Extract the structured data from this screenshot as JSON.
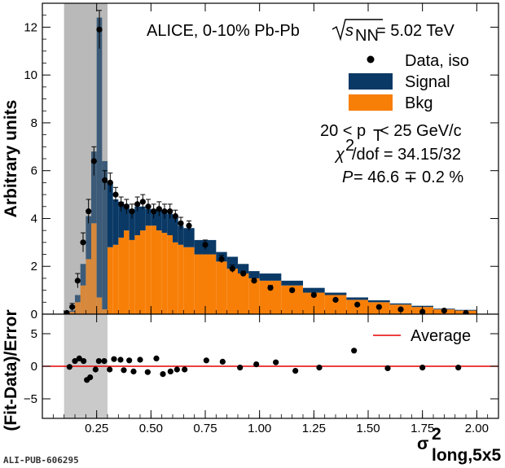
{
  "chart_data": [
    {
      "type": "bar",
      "panel": "top",
      "ylabel": "Arbitrary units",
      "xlim": [
        0.0,
        2.1
      ],
      "ylim": [
        0,
        13
      ],
      "xticks": [
        0.25,
        0.5,
        0.75,
        1.0,
        1.25,
        1.5,
        1.75,
        2.0
      ],
      "yticks": [
        0,
        2,
        4,
        6,
        8,
        10,
        12
      ],
      "ytick_labels": [
        "0",
        "2",
        "4",
        "6",
        "8",
        "10",
        "12"
      ],
      "shaded_x_range": [
        0.1,
        0.3
      ],
      "annotations": {
        "collision": "ALICE, 0-10% Pb-Pb",
        "energy": "= 5.02 TeV",
        "pt_range": "20 < p",
        "pt_unit": " < 25 GeV/c",
        "chi2_value": "/dof = 34.15/32",
        "purity_value": " = 46.6 ∓ 0.2 %",
        "purity_symbol": "P"
      },
      "legend": {
        "position": "top-right",
        "entries": [
          {
            "label": "Data, iso",
            "marker": "circle",
            "color": "#000000"
          },
          {
            "label": "Signal",
            "marker": "box",
            "color": "#0a3966"
          },
          {
            "label": "Bkg",
            "marker": "box",
            "color": "#f77f08"
          }
        ]
      },
      "bin_edges": [
        0.1,
        0.125,
        0.15,
        0.175,
        0.2,
        0.225,
        0.25,
        0.275,
        0.3,
        0.325,
        0.35,
        0.375,
        0.4,
        0.425,
        0.45,
        0.475,
        0.5,
        0.525,
        0.55,
        0.575,
        0.6,
        0.625,
        0.65,
        0.7,
        0.8,
        0.85,
        0.9,
        0.95,
        1.0,
        1.1,
        1.2,
        1.3,
        1.4,
        1.5,
        1.6,
        1.7,
        1.8,
        1.9,
        2.0
      ],
      "series": [
        {
          "name": "Bkg",
          "color": "#f77f08",
          "values": [
            0.02,
            0.1,
            0.5,
            1.2,
            2.3,
            3.8,
            0.7,
            0.2,
            2.8,
            2.9,
            3.2,
            3.5,
            3.1,
            3.3,
            3.5,
            3.7,
            3.7,
            3.5,
            3.4,
            3.3,
            3.0,
            2.9,
            2.8,
            2.5,
            2.2,
            1.9,
            1.7,
            1.5,
            1.4,
            1.2,
            0.9,
            0.8,
            0.6,
            0.5,
            0.4,
            0.3,
            0.2,
            0.15
          ]
        },
        {
          "name": "Signal",
          "color": "#0a3966",
          "values": [
            0.0,
            0.05,
            0.3,
            0.9,
            1.8,
            3.0,
            11.7,
            6.2,
            2.7,
            1.9,
            1.5,
            1.1,
            1.3,
            1.2,
            1.0,
            0.7,
            0.7,
            0.9,
            0.9,
            0.9,
            1.1,
            0.8,
            0.8,
            0.6,
            0.4,
            0.5,
            0.4,
            0.3,
            0.3,
            0.2,
            0.2,
            0.1,
            0.1,
            0.08,
            0.05,
            0.05,
            0.03,
            0.03
          ]
        }
      ],
      "data_points": {
        "name": "Data, iso",
        "x": [
          0.1125,
          0.1375,
          0.1625,
          0.1875,
          0.2125,
          0.2375,
          0.2625,
          0.2875,
          0.3125,
          0.3375,
          0.3625,
          0.3875,
          0.4125,
          0.4375,
          0.4625,
          0.4875,
          0.5125,
          0.5375,
          0.5625,
          0.5875,
          0.6125,
          0.6375,
          0.675,
          0.75,
          0.825,
          0.875,
          0.925,
          0.975,
          1.05,
          1.15,
          1.25,
          1.35,
          1.45,
          1.55,
          1.65,
          1.75,
          1.85,
          1.95
        ],
        "y": [
          0.05,
          0.3,
          1.4,
          3.0,
          4.3,
          6.4,
          11.9,
          5.6,
          5.5,
          5.0,
          4.6,
          4.5,
          4.3,
          4.6,
          4.7,
          4.5,
          4.3,
          4.4,
          4.3,
          4.3,
          4.1,
          3.8,
          3.7,
          2.9,
          2.3,
          1.9,
          1.7,
          1.4,
          1.1,
          1.0,
          0.8,
          0.6,
          0.4,
          0.3,
          0.2,
          0.1,
          0.15,
          0.05
        ],
        "err": [
          0.05,
          0.15,
          0.3,
          0.4,
          0.5,
          0.6,
          0.8,
          0.4,
          0.4,
          0.3,
          0.3,
          0.3,
          0.3,
          0.3,
          0.3,
          0.3,
          0.3,
          0.3,
          0.3,
          0.3,
          0.25,
          0.25,
          0.2,
          0.2,
          0.15,
          0.15,
          0.1,
          0.1,
          0.1,
          0.08,
          0.08,
          0.06,
          0.05,
          0.04,
          0.04,
          0.03,
          0.03,
          0.02
        ]
      }
    },
    {
      "type": "scatter",
      "panel": "bottom",
      "ylabel": "(Fit-Data)/Error",
      "xlabel": "σ",
      "xlabel_sup": "2",
      "xlabel_sub": "long,5x5",
      "xlim": [
        0.0,
        2.1
      ],
      "ylim": [
        -8,
        8
      ],
      "xticks": [
        0.25,
        0.5,
        0.75,
        1.0,
        1.25,
        1.5,
        1.75,
        2.0
      ],
      "xtick_labels": [
        "0.25",
        "0.50",
        "0.75",
        "1.00",
        "1.25",
        "1.50",
        "1.75",
        "2.00"
      ],
      "yticks": [
        -5,
        0,
        5
      ],
      "ytick_labels": [
        "−5",
        "0",
        "5"
      ],
      "shaded_x_range": [
        0.1,
        0.3
      ],
      "average": {
        "label": "Average",
        "value": 0.0,
        "color": "#e60000"
      },
      "x": [
        0.125,
        0.15,
        0.175,
        0.2,
        0.225,
        0.25,
        0.275,
        0.3,
        0.35,
        0.375,
        0.4,
        0.425,
        0.45,
        0.475,
        0.525,
        0.575,
        0.625,
        0.675,
        0.725,
        0.75,
        0.8,
        0.9,
        0.95,
        1.075,
        1.15,
        1.25,
        1.375,
        1.425,
        1.55,
        1.675,
        1.85
      ],
      "y": [
        -0.1,
        0.6,
        1.2,
        0.7,
        -2.0,
        -1.4,
        -0.7,
        0.7,
        0.8,
        0.8,
        -0.6,
        -0.8,
        1.2,
        0.7,
        0.8,
        1.0,
        -0.7,
        0.9,
        -0.2,
        -1.2,
        -0.3,
        1.2,
        1.0,
        0.6,
        -0.5,
        0.7,
        -0.4,
        2.5,
        -0.2,
        -0.1,
        0.0
      ],
      "x_fixed": [
        0.125,
        0.15,
        0.17,
        0.19,
        0.205,
        0.22,
        0.245,
        0.26,
        0.285,
        0.31,
        0.33,
        0.36,
        0.375,
        0.4,
        0.42,
        0.45,
        0.485,
        0.525,
        0.555,
        0.59,
        0.62,
        0.655,
        0.755,
        0.83,
        0.91,
        0.985,
        1.075,
        1.165,
        1.275,
        1.435,
        1.59,
        1.75,
        1.915
      ],
      "y_fixed": [
        -0.1,
        0.8,
        1.2,
        0.8,
        -2.1,
        -1.7,
        -0.5,
        0.8,
        0.8,
        -0.5,
        1.1,
        1.0,
        -0.6,
        0.9,
        -0.8,
        1.0,
        -0.9,
        1.2,
        -1.2,
        -0.8,
        -0.5,
        -0.5,
        0.9,
        0.7,
        -0.2,
        0.3,
        0.6,
        -0.7,
        -0.2,
        2.4,
        -0.3,
        -0.2,
        -0.2
      ]
    }
  ],
  "footer": "ALI-PUB-606295"
}
